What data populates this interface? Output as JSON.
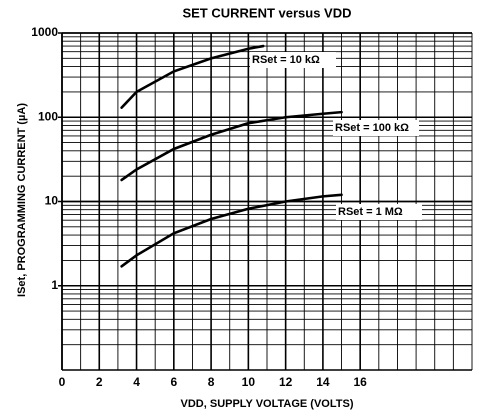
{
  "chart_data": {
    "type": "line",
    "title": "SET CURRENT versus VDD",
    "x_label": "VDD, SUPPLY VOLTAGE (VOLTS)",
    "y_label": "ISet, PROGRAMMING CURRENT (µA)",
    "log_y": true,
    "grid": true,
    "xlim": [
      0,
      22
    ],
    "xticks": [
      0,
      2,
      4,
      6,
      8,
      10,
      12,
      14,
      16
    ],
    "ylim": [
      0.1,
      1000
    ],
    "yticks": [
      1,
      10,
      100,
      1000
    ],
    "series": [
      {
        "name": "RSet = 10 kΩ",
        "color": "#000000",
        "x": [
          3.2,
          4,
          6,
          8,
          10,
          10.8
        ],
        "values": [
          130,
          200,
          350,
          500,
          650,
          700
        ]
      },
      {
        "name": "RSet = 100 kΩ",
        "color": "#000000",
        "x": [
          3.2,
          4,
          6,
          8,
          10,
          12,
          14,
          15
        ],
        "values": [
          18,
          24,
          42,
          62,
          85,
          100,
          110,
          115
        ]
      },
      {
        "name": "RSet = 1 MΩ",
        "color": "#000000",
        "x": [
          3.2,
          4,
          6,
          8,
          10,
          12,
          14,
          15
        ],
        "values": [
          1.7,
          2.3,
          4.2,
          6.2,
          8.2,
          10,
          11.5,
          12
        ]
      }
    ]
  }
}
